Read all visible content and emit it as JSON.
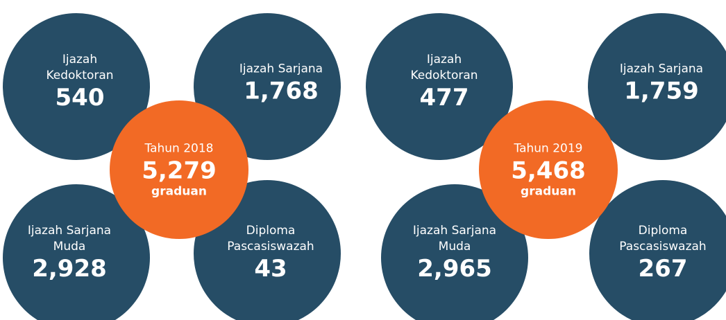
{
  "groups": [
    {
      "center": {
        "label": "Tahun 2018",
        "value": "5,279",
        "unit": "graduan"
      },
      "items": [
        {
          "label": [
            "Ijazah",
            "Kedoktoran"
          ],
          "value": "540"
        },
        {
          "label": [
            "Ijazah Sarjana"
          ],
          "value": "1,768"
        },
        {
          "label": [
            "Ijazah Sarjana",
            "Muda"
          ],
          "value": "2,928"
        },
        {
          "label": [
            "Diploma",
            "Pascasiswazah"
          ],
          "value": "43"
        }
      ]
    },
    {
      "center": {
        "label": "Tahun 2019",
        "value": "5,468",
        "unit": "graduan"
      },
      "items": [
        {
          "label": [
            "Ijazah",
            "Kedoktoran"
          ],
          "value": "477"
        },
        {
          "label": [
            "Ijazah Sarjana"
          ],
          "value": "1,759"
        },
        {
          "label": [
            "Ijazah Sarjana",
            "Muda"
          ],
          "value": "2,965"
        },
        {
          "label": [
            "Diploma",
            "Pascasiswazah"
          ],
          "value": "267"
        }
      ]
    }
  ]
}
